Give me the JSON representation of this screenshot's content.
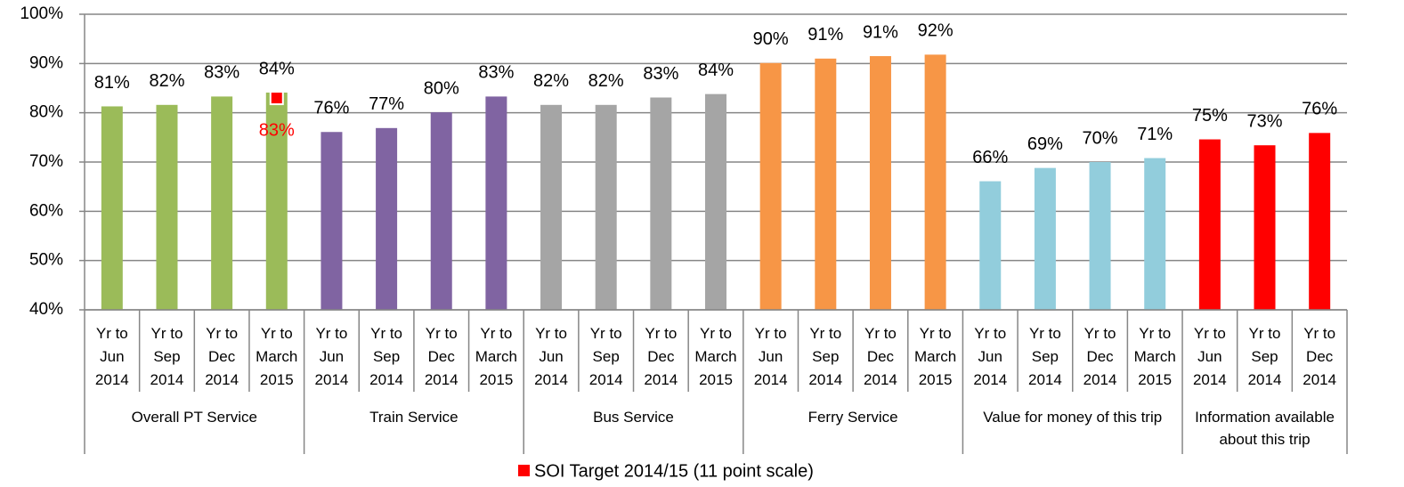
{
  "chart_data": {
    "type": "bar",
    "ylim": [
      40,
      100
    ],
    "yticks": [
      {
        "value": 40,
        "label": "40%"
      },
      {
        "value": 50,
        "label": "50%"
      },
      {
        "value": 60,
        "label": "60%"
      },
      {
        "value": 70,
        "label": "70%"
      },
      {
        "value": 80,
        "label": "80%"
      },
      {
        "value": 90,
        "label": "90%"
      },
      {
        "value": 100,
        "label": "100%"
      }
    ],
    "grid": true,
    "groups": [
      {
        "name": "Overall PT Service",
        "color": "#9bbb59",
        "categories": [
          "Yr to Jun 2014",
          "Yr to Sep 2014",
          "Yr to Dec 2014",
          "Yr to March 2015"
        ],
        "values": [
          81.3,
          81.6,
          83.3,
          84.1
        ],
        "value_labels": [
          "81%",
          "82%",
          "83%",
          "84%"
        ],
        "target": {
          "name": "SOI Target 2014/15 (11 point scale)",
          "color": "#ff0000",
          "values": [
            null,
            null,
            null,
            83
          ],
          "value_labels": [
            null,
            null,
            null,
            "83%"
          ]
        }
      },
      {
        "name": "Train Service",
        "color": "#8064a2",
        "categories": [
          "Yr to Jun 2014",
          "Yr to Sep 2014",
          "Yr to Dec 2014",
          "Yr to March 2015"
        ],
        "values": [
          76.1,
          76.9,
          80.1,
          83.3
        ],
        "value_labels": [
          "76%",
          "77%",
          "80%",
          "83%"
        ]
      },
      {
        "name": "Bus Service",
        "color": "#a5a5a5",
        "categories": [
          "Yr to Jun 2014",
          "Yr to Sep 2014",
          "Yr to Dec 2014",
          "Yr to March 2015"
        ],
        "values": [
          81.6,
          81.6,
          83.1,
          83.8
        ],
        "value_labels": [
          "82%",
          "82%",
          "83%",
          "84%"
        ]
      },
      {
        "name": "Ferry Service",
        "color": "#f79646",
        "categories": [
          "Yr to Jun 2014",
          "Yr to Sep 2014",
          "Yr to Dec 2014",
          "Yr to March 2015"
        ],
        "values": [
          90.1,
          91.0,
          91.5,
          91.8
        ],
        "value_labels": [
          "90%",
          "91%",
          "91%",
          "92%"
        ]
      },
      {
        "name": "Value for money of this trip",
        "color": "#92cddc",
        "categories": [
          "Yr to Jun 2014",
          "Yr to Sep 2014",
          "Yr to Dec 2014",
          "Yr to March 2015"
        ],
        "values": [
          66.1,
          68.8,
          70.0,
          70.8
        ],
        "value_labels": [
          "66%",
          "69%",
          "70%",
          "71%"
        ]
      },
      {
        "name": "Information available about this trip",
        "color": "#ff0000",
        "categories": [
          "Yr to Jun 2014",
          "Yr to Sep 2014",
          "Yr to Dec 2014"
        ],
        "values": [
          74.6,
          73.4,
          75.9
        ],
        "value_labels": [
          "75%",
          "73%",
          "76%"
        ]
      }
    ]
  }
}
